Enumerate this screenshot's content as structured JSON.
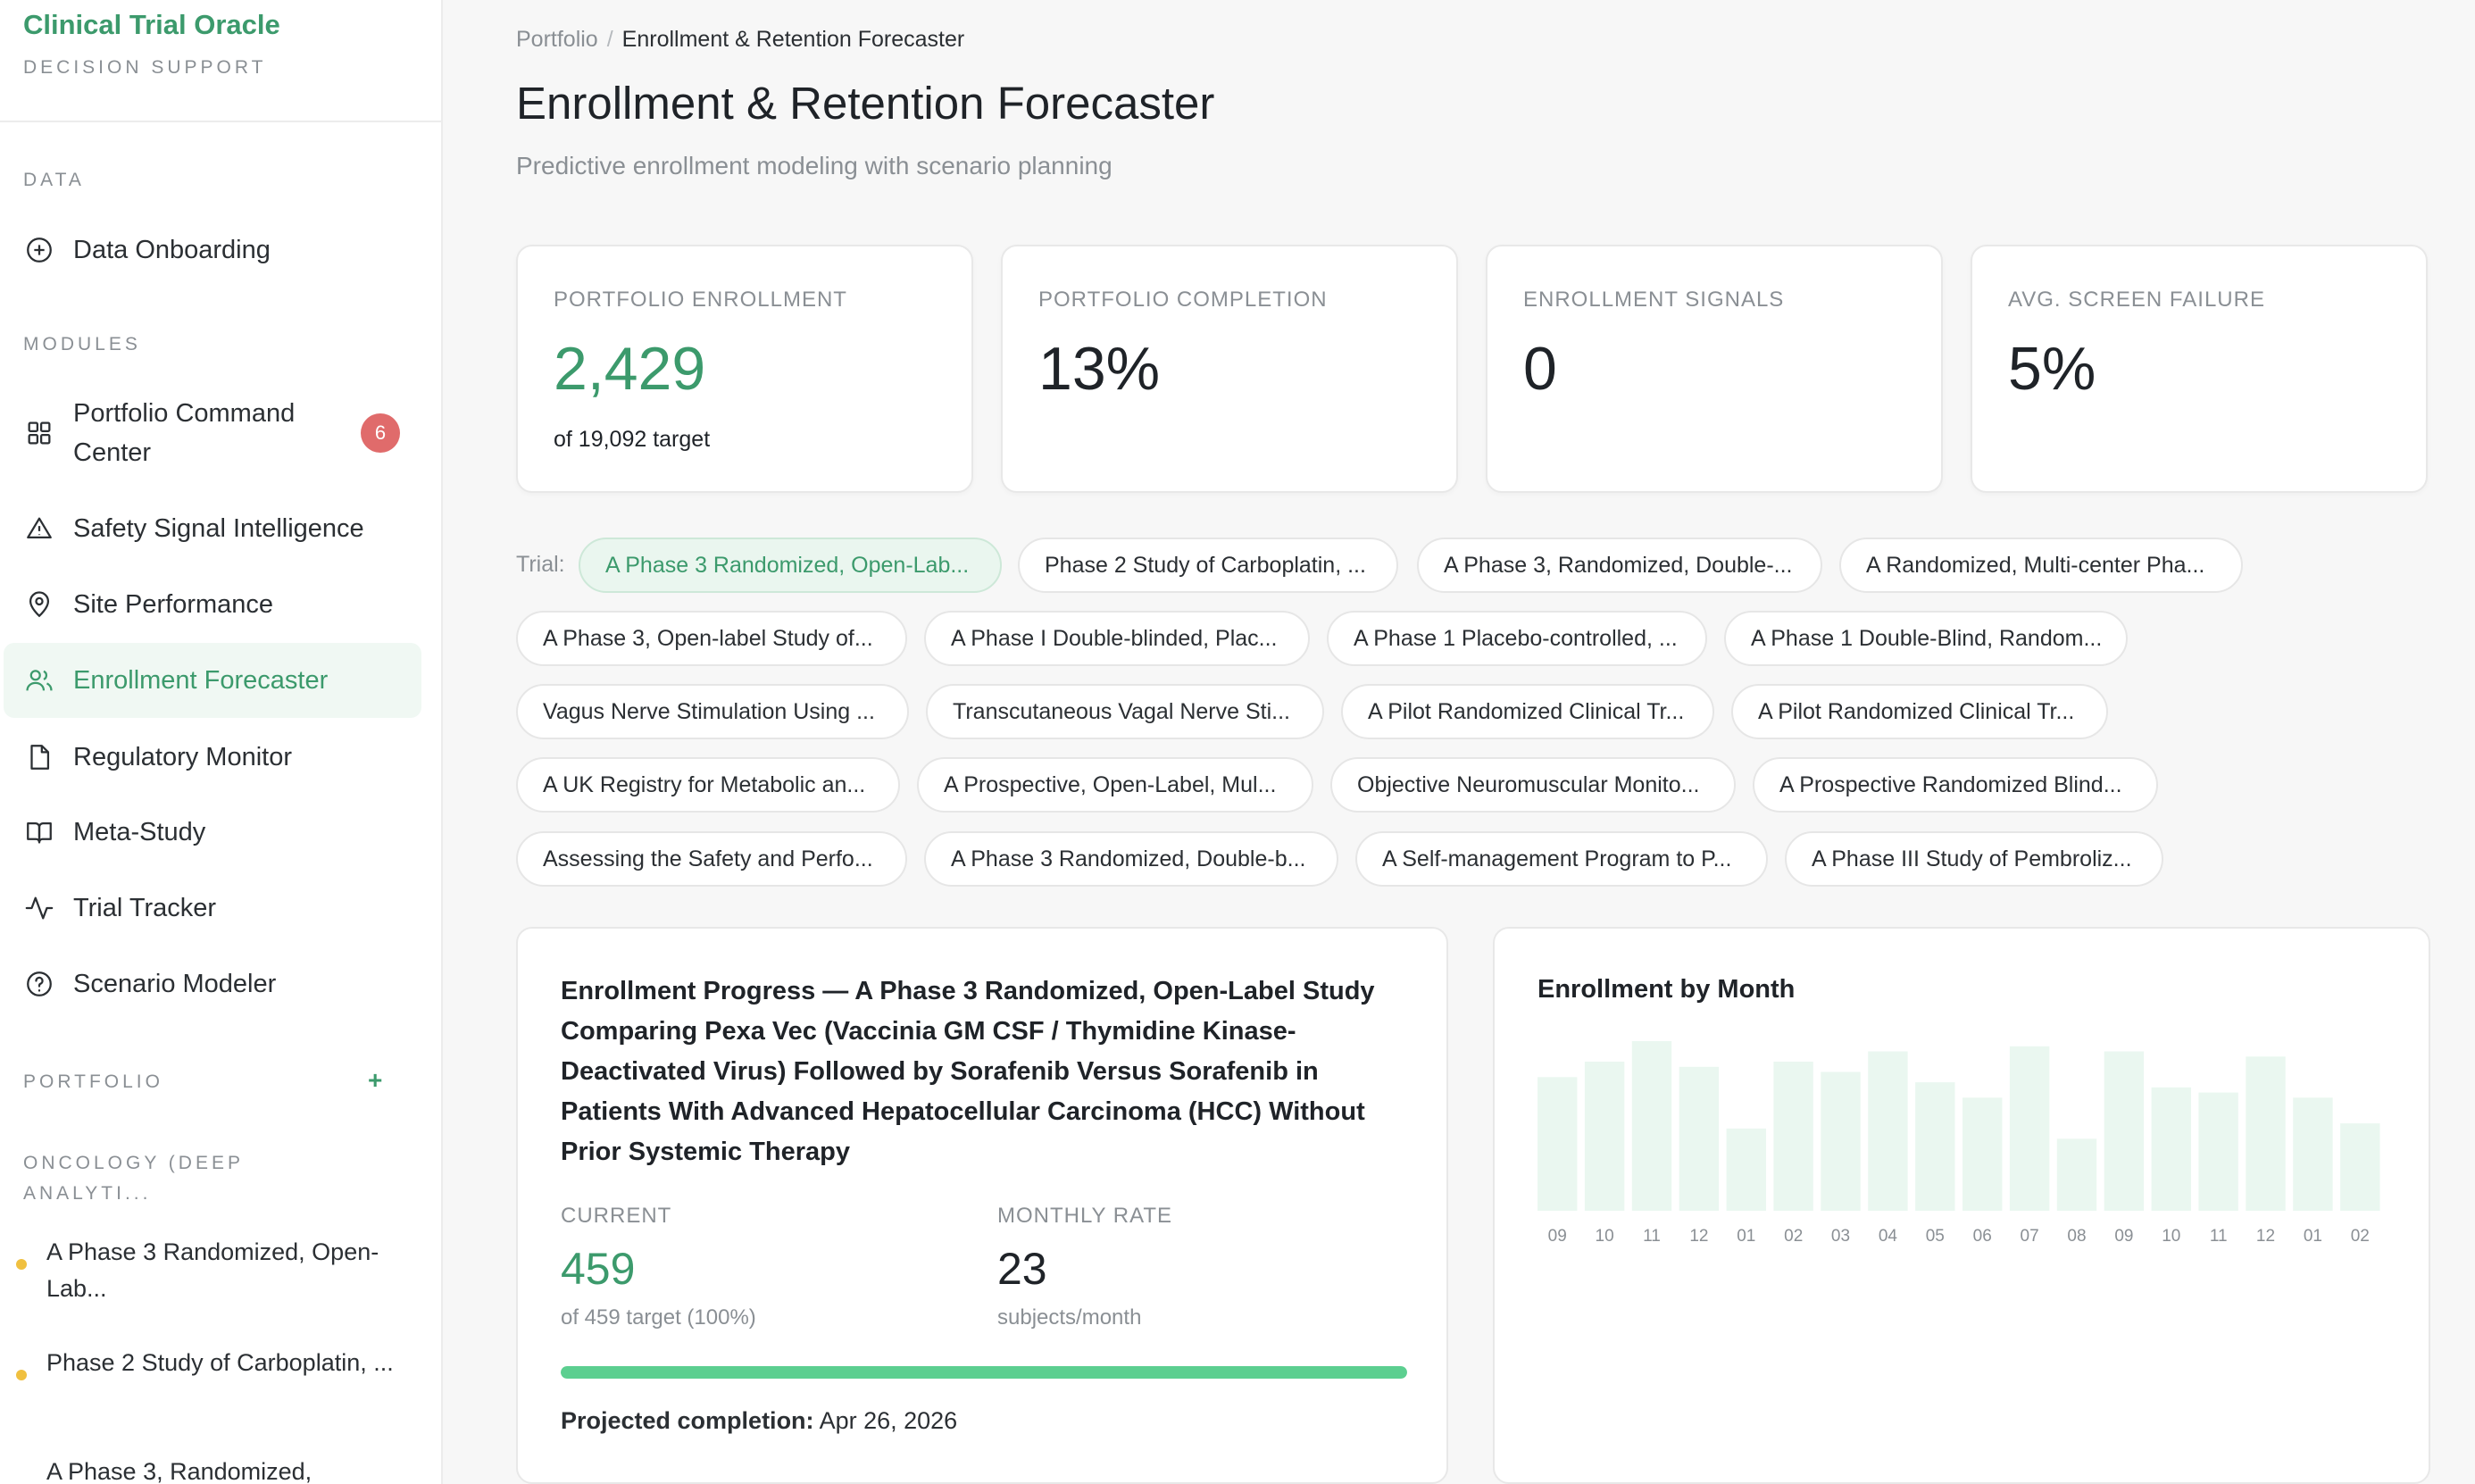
{
  "brand": {
    "title": "Clinical Trial Oracle",
    "subtitle": "DECISION SUPPORT"
  },
  "sidebar": {
    "data_label": "DATA",
    "modules_label": "MODULES",
    "portfolio_label": "PORTFOLIO",
    "portfolio_add": "+",
    "items": [
      {
        "label": "Data Onboarding",
        "icon": "plus-circle-icon"
      },
      {
        "label": "Portfolio Command Center",
        "icon": "grid-icon",
        "badge": "6"
      },
      {
        "label": "Safety Signal Intelligence",
        "icon": "warning-triangle-icon"
      },
      {
        "label": "Site Performance",
        "icon": "map-pin-icon"
      },
      {
        "label": "Enrollment Forecaster",
        "icon": "users-icon",
        "active": true
      },
      {
        "label": "Regulatory Monitor",
        "icon": "document-icon"
      },
      {
        "label": "Meta-Study",
        "icon": "book-open-icon"
      },
      {
        "label": "Trial Tracker",
        "icon": "activity-icon"
      },
      {
        "label": "Scenario Modeler",
        "icon": "help-circle-icon"
      }
    ],
    "group_label": "ONCOLOGY (DEEP ANALYTI...",
    "portfolio_items": [
      {
        "label": "A Phase 3 Randomized, Open-Lab..."
      },
      {
        "label": "Phase 2 Study of Carboplatin, ..."
      },
      {
        "label": "A Phase 3, Randomized,"
      }
    ]
  },
  "breadcrumb": {
    "root": "Portfolio",
    "separator": "/",
    "current": "Enrollment & Retention Forecaster"
  },
  "page": {
    "title": "Enrollment & Retention Forecaster",
    "subtitle": "Predictive enrollment modeling with scenario planning"
  },
  "kpis": [
    {
      "label": "PORTFOLIO ENROLLMENT",
      "value": "2,429",
      "sub": "of 19,092 target"
    },
    {
      "label": "PORTFOLIO COMPLETION",
      "value": "13%"
    },
    {
      "label": "ENROLLMENT SIGNALS",
      "value": "0"
    },
    {
      "label": "AVG. SCREEN FAILURE",
      "value": "5%"
    }
  ],
  "trial_filter": {
    "label": "Trial:",
    "chips": [
      "A Phase 3 Randomized, Open-Lab...",
      "Phase 2 Study of Carboplatin, ...",
      "A Phase 3, Randomized, Double-...",
      "A Randomized, Multi-center Pha...",
      "A Phase 3, Open-label Study of...",
      "A Phase I Double-blinded, Plac...",
      "A Phase 1 Placebo-controlled, ...",
      "A Phase 1 Double-Blind, Random...",
      "Vagus Nerve Stimulation Using ...",
      "Transcutaneous Vagal Nerve Sti...",
      "A Pilot Randomized Clinical Tr...",
      "A Pilot Randomized Clinical Tr...",
      "A UK Registry for Metabolic an...",
      "A Prospective, Open-Label, Mul...",
      "Objective Neuromuscular Monito...",
      "A Prospective Randomized Blind...",
      "Assessing the Safety and Perfo...",
      "A Phase 3 Randomized, Double-b...",
      "A Self-management Program to P...",
      "A Phase III Study of Pembroliz..."
    ],
    "selected_index": 0
  },
  "enrollment_progress": {
    "title": "Enrollment Progress — A Phase 3 Randomized, Open-Label Study Comparing Pexa Vec (Vaccinia GM CSF / Thymidine Kinase-Deactivated Virus) Followed by Sorafenib Versus Sorafenib in Patients With Advanced Hepatocellular Carcinoma (HCC) Without Prior Systemic Therapy",
    "current_label": "CURRENT",
    "current_value": "459",
    "current_sub": "of 459 target (100%)",
    "rate_label": "MONTHLY RATE",
    "rate_value": "23",
    "rate_sub": "subjects/month",
    "progress_fraction": 1.0,
    "projected_label": "Projected completion:",
    "projected_value": "Apr 26, 2026"
  },
  "chart_data": {
    "type": "bar",
    "title": "Enrollment by Month",
    "categories": [
      "09",
      "10",
      "11",
      "12",
      "01",
      "02",
      "03",
      "04",
      "05",
      "06",
      "07",
      "08",
      "09",
      "10",
      "11",
      "12",
      "01",
      "02"
    ],
    "values": [
      26,
      29,
      33,
      28,
      16,
      29,
      27,
      31,
      25,
      22,
      32,
      14,
      31,
      24,
      23,
      30,
      22,
      17
    ],
    "ylim": [
      0,
      33
    ],
    "grid": false,
    "legend": "none"
  },
  "colors": {
    "accent": "#3c9a6c",
    "bar": "#eaf7f0",
    "progress": "#5ccf90",
    "badge": "#e06b6b",
    "portfolio_dot": "#f0c040"
  }
}
